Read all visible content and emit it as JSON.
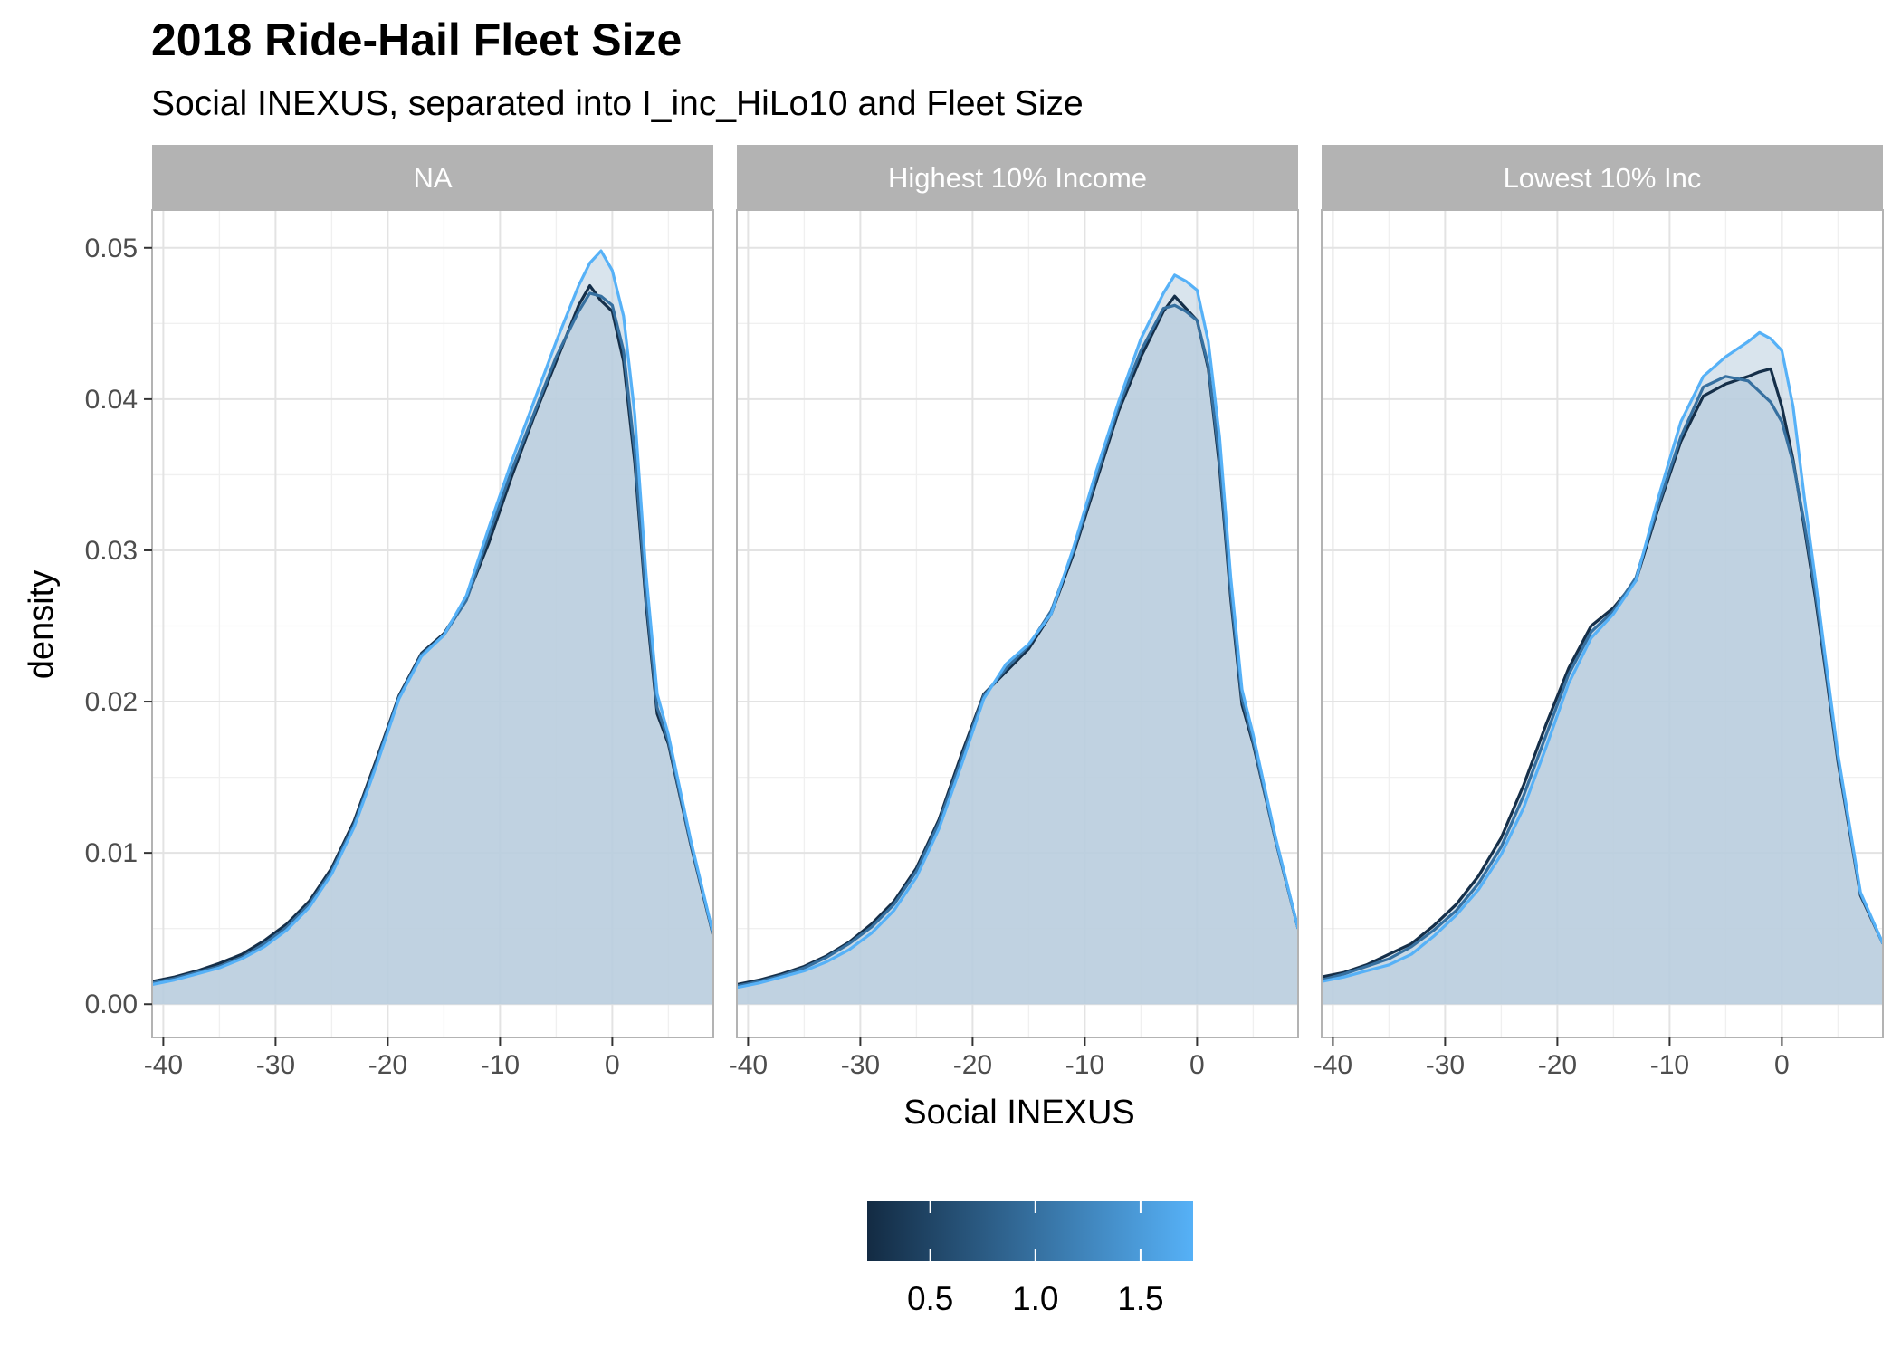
{
  "chart_data": {
    "type": "area",
    "title": "2018 Ride-Hail Fleet Size",
    "subtitle": "Social INEXUS, separated into I_inc_HiLo10 and Fleet Size",
    "xlabel": "Social INEXUS",
    "ylabel": "density",
    "xlim": [
      -41,
      9
    ],
    "ylim": [
      -0.0022,
      0.0525
    ],
    "x_ticks": [
      -40,
      -30,
      -20,
      -10,
      0
    ],
    "x_tick_labels": [
      "-40",
      "-30",
      "-20",
      "-10",
      "0"
    ],
    "y_ticks": [
      0,
      0.01,
      0.02,
      0.03,
      0.04,
      0.05
    ],
    "y_tick_labels": [
      "0.00",
      "0.01",
      "0.02",
      "0.03",
      "0.04",
      "0.05"
    ],
    "grid": true,
    "legend": {
      "type": "colorbar",
      "position": "bottom",
      "range": [
        0.2,
        1.75
      ],
      "breaks": [
        0.5,
        1.0,
        1.5
      ],
      "break_labels": [
        "0.5",
        "1.0",
        "1.5"
      ],
      "color_low": "#132b43",
      "color_high": "#56b1f7"
    },
    "fill_color": "#b9cede",
    "x": [
      -41,
      -39,
      -37,
      -35,
      -33,
      -31,
      -29,
      -27,
      -25,
      -23,
      -21,
      -19,
      -17,
      -15,
      -13,
      -11,
      -9,
      -7,
      -5,
      -3,
      -2,
      -1,
      0,
      1,
      2,
      3,
      4,
      5,
      7,
      9
    ],
    "panels": [
      {
        "label": "NA",
        "series": [
          {
            "fleet_size": 0.25,
            "values": [
              0.0015,
              0.0018,
              0.0022,
              0.0027,
              0.0033,
              0.0042,
              0.0053,
              0.0068,
              0.009,
              0.0121,
              0.0162,
              0.0204,
              0.0232,
              0.0245,
              0.0268,
              0.0305,
              0.0348,
              0.0388,
              0.0425,
              0.0462,
              0.0475,
              0.0465,
              0.0458,
              0.0425,
              0.0358,
              0.0265,
              0.0192,
              0.0172,
              0.0105,
              0.0045
            ]
          },
          {
            "fleet_size": 1.0,
            "values": [
              0.0014,
              0.0017,
              0.0021,
              0.0025,
              0.0031,
              0.004,
              0.0051,
              0.0066,
              0.0088,
              0.0119,
              0.016,
              0.0203,
              0.0231,
              0.0244,
              0.0267,
              0.031,
              0.0352,
              0.039,
              0.0428,
              0.0458,
              0.047,
              0.0468,
              0.0462,
              0.0432,
              0.0365,
              0.027,
              0.0196,
              0.0174,
              0.0106,
              0.0046
            ]
          },
          {
            "fleet_size": 1.75,
            "values": [
              0.0013,
              0.0016,
              0.002,
              0.0024,
              0.003,
              0.0038,
              0.0049,
              0.0064,
              0.0086,
              0.0117,
              0.0158,
              0.0202,
              0.023,
              0.0244,
              0.027,
              0.0315,
              0.0358,
              0.0398,
              0.0438,
              0.0475,
              0.049,
              0.0498,
              0.0485,
              0.0455,
              0.039,
              0.0285,
              0.0205,
              0.0178,
              0.0108,
              0.0046
            ]
          }
        ]
      },
      {
        "label": "Highest 10% Income",
        "series": [
          {
            "fleet_size": 0.25,
            "values": [
              0.0013,
              0.0016,
              0.002,
              0.0025,
              0.0032,
              0.0041,
              0.0053,
              0.0068,
              0.009,
              0.0122,
              0.0165,
              0.0205,
              0.022,
              0.0235,
              0.0258,
              0.0298,
              0.0345,
              0.0392,
              0.0428,
              0.0458,
              0.0468,
              0.046,
              0.0452,
              0.042,
              0.0355,
              0.0268,
              0.0198,
              0.0172,
              0.0108,
              0.005
            ]
          },
          {
            "fleet_size": 1.0,
            "values": [
              0.0012,
              0.0015,
              0.0019,
              0.0024,
              0.0031,
              0.004,
              0.0051,
              0.0066,
              0.0088,
              0.012,
              0.0162,
              0.0204,
              0.0222,
              0.0237,
              0.026,
              0.03,
              0.0348,
              0.0395,
              0.0432,
              0.046,
              0.0462,
              0.0458,
              0.0452,
              0.0422,
              0.036,
              0.0272,
              0.0202,
              0.0174,
              0.0108,
              0.005
            ]
          },
          {
            "fleet_size": 1.75,
            "values": [
              0.0011,
              0.0014,
              0.0018,
              0.0022,
              0.0028,
              0.0036,
              0.0047,
              0.0062,
              0.0084,
              0.0116,
              0.0158,
              0.0202,
              0.0225,
              0.0238,
              0.0258,
              0.0302,
              0.0352,
              0.0398,
              0.044,
              0.047,
              0.0482,
              0.0478,
              0.0472,
              0.0438,
              0.0375,
              0.0282,
              0.0208,
              0.0178,
              0.011,
              0.005
            ]
          }
        ]
      },
      {
        "label": "Lowest 10% Inc",
        "series": [
          {
            "fleet_size": 0.25,
            "values": [
              0.0018,
              0.0021,
              0.0026,
              0.0033,
              0.004,
              0.0052,
              0.0066,
              0.0085,
              0.011,
              0.0145,
              0.0185,
              0.0222,
              0.025,
              0.0262,
              0.028,
              0.0328,
              0.0372,
              0.0402,
              0.041,
              0.0415,
              0.0418,
              0.042,
              0.0395,
              0.036,
              0.0315,
              0.0268,
              0.0215,
              0.016,
              0.0072,
              0.004
            ]
          },
          {
            "fleet_size": 1.0,
            "values": [
              0.0016,
              0.002,
              0.0025,
              0.003,
              0.0038,
              0.0049,
              0.0062,
              0.008,
              0.0104,
              0.0138,
              0.0178,
              0.0218,
              0.0246,
              0.026,
              0.0282,
              0.033,
              0.0375,
              0.0408,
              0.0415,
              0.0412,
              0.0405,
              0.0398,
              0.0385,
              0.0358,
              0.0318,
              0.0272,
              0.0218,
              0.0162,
              0.0073,
              0.004
            ]
          },
          {
            "fleet_size": 1.75,
            "values": [
              0.0015,
              0.0018,
              0.0022,
              0.0026,
              0.0033,
              0.0045,
              0.0059,
              0.0076,
              0.0099,
              0.013,
              0.017,
              0.0212,
              0.0242,
              0.0258,
              0.028,
              0.0335,
              0.0385,
              0.0415,
              0.0428,
              0.0438,
              0.0444,
              0.044,
              0.0432,
              0.0395,
              0.0335,
              0.028,
              0.0222,
              0.0165,
              0.0074,
              0.004
            ]
          }
        ]
      }
    ]
  }
}
